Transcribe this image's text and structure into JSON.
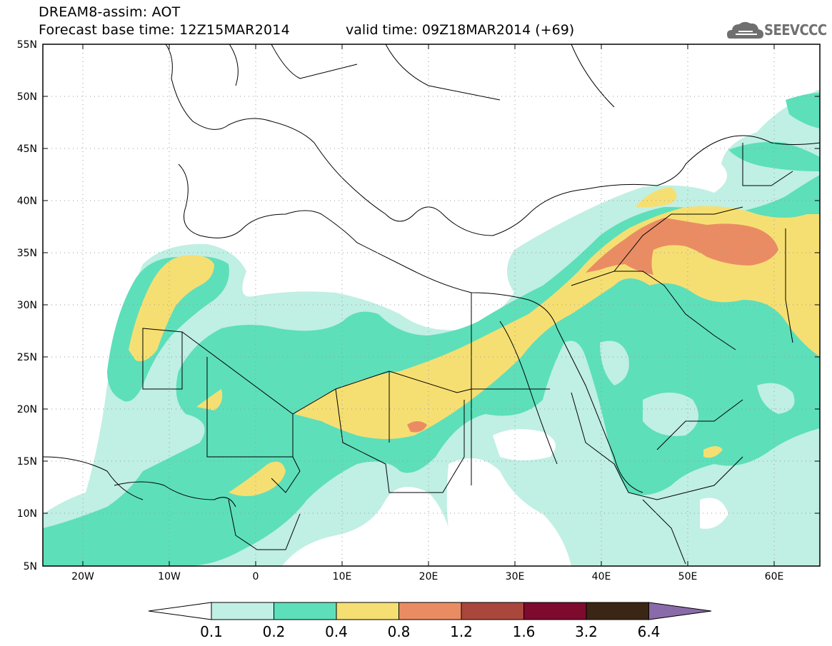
{
  "header": {
    "title": "DREAM8-assim: AOT",
    "base_time": "Forecast base time: 12Z15MAR2014",
    "valid_time": "valid time: 09Z18MAR2014 (+69)"
  },
  "logo": {
    "text": "SEEVCCC",
    "icon": "cloud-icon"
  },
  "map": {
    "lat_labels": [
      "55N",
      "50N",
      "45N",
      "40N",
      "35N",
      "30N",
      "25N",
      "20N",
      "15N",
      "10N",
      "5N"
    ],
    "lon_labels": [
      "20W",
      "10W",
      "0",
      "10E",
      "20E",
      "30E",
      "40E",
      "50E",
      "60E"
    ]
  },
  "legend": {
    "labels": [
      "0.1",
      "0.2",
      "0.4",
      "0.8",
      "1.2",
      "1.6",
      "3.2",
      "6.4"
    ],
    "colors": [
      "#ffffff",
      "#c0efe4",
      "#5ddfba",
      "#f6df72",
      "#ea8c63",
      "#a9473c",
      "#7e0a2e",
      "#3b2515",
      "#8a6ba9"
    ]
  }
}
